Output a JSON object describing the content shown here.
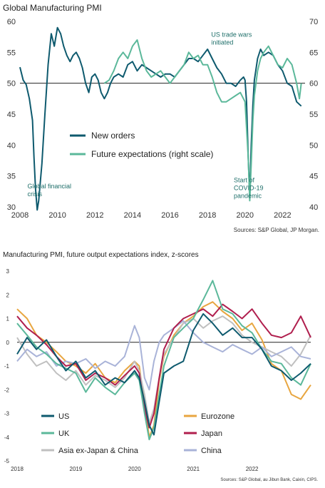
{
  "chart_data": [
    {
      "type": "line",
      "title": "Global Manufacturing PMI",
      "source": "Sources: S&P Global, JP Morgan.",
      "xlim": [
        2008,
        2023.2
      ],
      "x_ticks": [
        "2008",
        "2010",
        "2012",
        "2014",
        "2016",
        "2018",
        "2020",
        "2022"
      ],
      "ylim_left": [
        30,
        60
      ],
      "y_ticks_left": [
        "30",
        "35",
        "40",
        "45",
        "50",
        "55",
        "60"
      ],
      "ylim_right": [
        40,
        70
      ],
      "y_ticks_right": [
        "40",
        "45",
        "50",
        "55",
        "60",
        "65",
        "70"
      ],
      "reference_line": 50,
      "legend_placement": "center-left",
      "annotations": [
        {
          "text_lines": [
            "US trade wars",
            "initiated"
          ],
          "x": 2018.2,
          "y": 57.5,
          "color": "#1f6f6a"
        },
        {
          "text_lines": [
            "Global financial",
            "crisis"
          ],
          "x": 2008.4,
          "y": 33,
          "color": "#1f6f6a"
        },
        {
          "text_lines": [
            "Start of",
            "COVID-19",
            "pandemic"
          ],
          "x": 2019.4,
          "y": 34,
          "color": "#1f6f6a"
        }
      ],
      "series": [
        {
          "name": "New orders",
          "axis": "left",
          "color": "#0e5a6e",
          "x": [
            2008.0,
            2008.17,
            2008.33,
            2008.5,
            2008.67,
            2008.75,
            2008.83,
            2008.92,
            2009.0,
            2009.17,
            2009.33,
            2009.5,
            2009.67,
            2009.83,
            2010.0,
            2010.17,
            2010.33,
            2010.5,
            2010.67,
            2010.83,
            2011.0,
            2011.17,
            2011.33,
            2011.5,
            2011.67,
            2011.83,
            2012.0,
            2012.17,
            2012.33,
            2012.5,
            2012.67,
            2012.83,
            2013.0,
            2013.25,
            2013.5,
            2013.75,
            2014.0,
            2014.25,
            2014.5,
            2014.75,
            2015.0,
            2015.25,
            2015.5,
            2015.75,
            2016.0,
            2016.25,
            2016.5,
            2016.75,
            2017.0,
            2017.25,
            2017.5,
            2017.75,
            2018.0,
            2018.25,
            2018.5,
            2018.75,
            2019.0,
            2019.25,
            2019.5,
            2019.75,
            2019.92,
            2020.0,
            2020.08,
            2020.17,
            2020.25,
            2020.33,
            2020.42,
            2020.5,
            2020.67,
            2020.83,
            2021.0,
            2021.25,
            2021.5,
            2021.75,
            2022.0,
            2022.25,
            2022.5,
            2022.75,
            2023.0
          ],
          "y": [
            52.6,
            50.5,
            49.8,
            47.5,
            44,
            38,
            33,
            29.5,
            31,
            37,
            45,
            53,
            58,
            56,
            59,
            58,
            56,
            54.5,
            53.5,
            54.5,
            55,
            54,
            52.5,
            50,
            48.5,
            51,
            51.5,
            50.5,
            48.5,
            47.5,
            48.5,
            50,
            51,
            51.5,
            51,
            53,
            53.5,
            52,
            53,
            52.5,
            52,
            51.5,
            51,
            51.5,
            51.5,
            51,
            52,
            53,
            54,
            54,
            53.5,
            54.5,
            55.5,
            54,
            52.5,
            51.5,
            50,
            50,
            49.5,
            50.5,
            51,
            50.5,
            47,
            38,
            31.5,
            40,
            46.5,
            50.5,
            54,
            55.5,
            54.5,
            55,
            54.5,
            53,
            52,
            50,
            49.5,
            47,
            46.3
          ]
        },
        {
          "name": "Future expectations (right scale)",
          "axis": "right",
          "color": "#5bb89a",
          "x": [
            2012.5,
            2012.75,
            2013.0,
            2013.25,
            2013.5,
            2013.75,
            2014.0,
            2014.25,
            2014.5,
            2014.75,
            2015.0,
            2015.25,
            2015.5,
            2015.75,
            2016.0,
            2016.25,
            2016.5,
            2016.75,
            2017.0,
            2017.25,
            2017.5,
            2017.75,
            2018.0,
            2018.25,
            2018.5,
            2018.75,
            2019.0,
            2019.25,
            2019.5,
            2019.75,
            2020.0,
            2020.17,
            2020.25,
            2020.33,
            2020.42,
            2020.5,
            2020.67,
            2020.83,
            2021.0,
            2021.25,
            2021.5,
            2021.75,
            2022.0,
            2022.25,
            2022.5,
            2022.75,
            2022.9,
            2023.0
          ],
          "y": [
            60,
            60.5,
            62,
            64,
            65,
            64,
            66,
            67,
            64,
            62,
            61,
            61.5,
            62,
            61,
            60,
            61,
            62,
            63,
            65,
            64,
            64.5,
            63,
            63,
            61,
            58.5,
            57,
            57,
            57.5,
            58,
            58.5,
            57,
            48,
            41,
            47,
            54,
            58,
            62,
            64,
            65,
            66,
            64.5,
            63,
            62.5,
            64,
            63,
            60,
            57.5,
            60
          ]
        }
      ]
    },
    {
      "type": "line",
      "title": "Manufacturing PMI, future output expectations index, z-scores",
      "source": "Sources: S&P Global, au Jibun Bank, Caixin, CIPS.",
      "xlim": [
        2018,
        2023.0
      ],
      "x_ticks": [
        "2018",
        "2019",
        "2020",
        "2021",
        "2022"
      ],
      "ylim": [
        -5,
        3
      ],
      "y_ticks": [
        "3",
        "2",
        "1",
        "0",
        "-1",
        "-2",
        "-3",
        "-4",
        "-5"
      ],
      "reference_line": 0,
      "legend_placement": "bottom",
      "series": [
        {
          "name": "US",
          "color": "#0e5a6e",
          "x": [
            2018.0,
            2018.17,
            2018.33,
            2018.5,
            2018.67,
            2018.83,
            2019.0,
            2019.17,
            2019.33,
            2019.5,
            2019.67,
            2019.83,
            2020.0,
            2020.08,
            2020.17,
            2020.25,
            2020.33,
            2020.42,
            2020.5,
            2020.67,
            2020.83,
            2021.0,
            2021.17,
            2021.33,
            2021.5,
            2021.67,
            2021.83,
            2022.0,
            2022.17,
            2022.33,
            2022.5,
            2022.67,
            2022.83,
            2023.0
          ],
          "y": [
            -0.5,
            0.2,
            -0.3,
            0.1,
            -0.6,
            -1.2,
            -0.8,
            -1.5,
            -1.2,
            -1.8,
            -1.5,
            -1.7,
            -1.2,
            -1.5,
            -2.5,
            -3.5,
            -3.9,
            -2.5,
            -1.3,
            -1.0,
            -0.8,
            0.5,
            1.2,
            0.8,
            0.3,
            0.6,
            0.2,
            0.2,
            -0.3,
            -1.0,
            -1.2,
            -1.6,
            -1.3,
            -0.9
          ]
        },
        {
          "name": "UK",
          "color": "#5bb89a",
          "x": [
            2018.0,
            2018.17,
            2018.33,
            2018.5,
            2018.67,
            2018.83,
            2019.0,
            2019.17,
            2019.33,
            2019.5,
            2019.67,
            2019.83,
            2020.0,
            2020.08,
            2020.17,
            2020.25,
            2020.33,
            2020.42,
            2020.5,
            2020.67,
            2020.83,
            2021.0,
            2021.17,
            2021.33,
            2021.5,
            2021.67,
            2021.83,
            2022.0,
            2022.17,
            2022.33,
            2022.5,
            2022.67,
            2022.83,
            2023.0
          ],
          "y": [
            0.8,
            0.3,
            -0.2,
            -0.5,
            -0.9,
            -1.1,
            -1.3,
            -2.1,
            -1.5,
            -1.9,
            -2.2,
            -1.7,
            -1.3,
            -1.6,
            -3.0,
            -4.1,
            -3.6,
            -2.2,
            -1.0,
            0.2,
            0.6,
            1.0,
            1.8,
            2.6,
            1.4,
            1.2,
            0.7,
            0.4,
            -0.3,
            -0.8,
            -0.9,
            -1.5,
            -1.8,
            -0.9
          ]
        },
        {
          "name": "Asia ex-Japan & China",
          "color": "#c0c0c0",
          "x": [
            2018.0,
            2018.17,
            2018.33,
            2018.5,
            2018.67,
            2018.83,
            2019.0,
            2019.17,
            2019.33,
            2019.5,
            2019.67,
            2019.83,
            2020.0,
            2020.08,
            2020.17,
            2020.25,
            2020.33,
            2020.42,
            2020.5,
            2020.67,
            2020.83,
            2021.0,
            2021.17,
            2021.33,
            2021.5,
            2021.67,
            2021.83,
            2022.0,
            2022.17,
            2022.33,
            2022.5,
            2022.67,
            2022.83,
            2023.0
          ],
          "y": [
            0.2,
            -0.5,
            -1.0,
            -0.8,
            -1.3,
            -1.6,
            -1.2,
            -1.8,
            -1.4,
            -1.6,
            -1.9,
            -1.5,
            -0.8,
            -1.2,
            -2.2,
            -3.4,
            -2.8,
            -1.5,
            -0.5,
            0.2,
            0.8,
            1.0,
            0.6,
            0.9,
            1.1,
            0.8,
            0.3,
            0.0,
            -0.2,
            -0.4,
            -0.6,
            -1.0,
            -0.5,
            0.3
          ]
        },
        {
          "name": "Eurozone",
          "color": "#e8a640",
          "x": [
            2018.0,
            2018.17,
            2018.33,
            2018.5,
            2018.67,
            2018.83,
            2019.0,
            2019.17,
            2019.33,
            2019.5,
            2019.67,
            2019.83,
            2020.0,
            2020.08,
            2020.17,
            2020.25,
            2020.33,
            2020.42,
            2020.5,
            2020.67,
            2020.83,
            2021.0,
            2021.17,
            2021.33,
            2021.5,
            2021.67,
            2021.83,
            2022.0,
            2022.17,
            2022.33,
            2022.5,
            2022.67,
            2022.83,
            2023.0
          ],
          "y": [
            1.4,
            1.0,
            0.3,
            0.0,
            -0.4,
            -0.8,
            -1.0,
            -1.3,
            -0.9,
            -1.5,
            -1.7,
            -1.2,
            -0.8,
            -1.0,
            -2.6,
            -4.0,
            -3.5,
            -1.6,
            -0.6,
            0.3,
            0.8,
            1.1,
            1.5,
            1.7,
            1.3,
            1.0,
            0.5,
            0.8,
            0.1,
            -0.9,
            -1.2,
            -2.2,
            -2.4,
            -1.8
          ]
        },
        {
          "name": "Japan",
          "color": "#b01f4e",
          "x": [
            2018.0,
            2018.17,
            2018.33,
            2018.5,
            2018.67,
            2018.83,
            2019.0,
            2019.17,
            2019.33,
            2019.5,
            2019.67,
            2019.83,
            2020.0,
            2020.08,
            2020.17,
            2020.25,
            2020.33,
            2020.42,
            2020.5,
            2020.67,
            2020.83,
            2021.0,
            2021.17,
            2021.33,
            2021.5,
            2021.67,
            2021.83,
            2022.0,
            2022.17,
            2022.33,
            2022.5,
            2022.67,
            2022.83,
            2023.0
          ],
          "y": [
            1.1,
            0.6,
            0.3,
            -0.1,
            -0.6,
            -1.0,
            -0.9,
            -1.6,
            -1.3,
            -1.5,
            -1.8,
            -1.4,
            -1.0,
            -1.3,
            -2.8,
            -3.6,
            -3.0,
            -1.5,
            -0.3,
            0.6,
            1.0,
            1.2,
            1.4,
            1.1,
            1.6,
            1.3,
            1.0,
            1.4,
            0.8,
            0.3,
            0.2,
            0.4,
            1.1,
            0.2
          ]
        },
        {
          "name": "China",
          "color": "#a9b3d8",
          "x": [
            2018.0,
            2018.17,
            2018.33,
            2018.5,
            2018.67,
            2018.83,
            2019.0,
            2019.17,
            2019.33,
            2019.5,
            2019.67,
            2019.83,
            2020.0,
            2020.08,
            2020.17,
            2020.25,
            2020.33,
            2020.42,
            2020.5,
            2020.67,
            2020.83,
            2021.0,
            2021.17,
            2021.33,
            2021.5,
            2021.67,
            2021.83,
            2022.0,
            2022.17,
            2022.33,
            2022.5,
            2022.67,
            2022.83,
            2023.0
          ],
          "y": [
            -0.8,
            -0.3,
            -0.6,
            -0.4,
            -1.0,
            -0.8,
            -0.9,
            -0.7,
            -1.1,
            -0.8,
            -1.0,
            -0.6,
            0.7,
            0.2,
            -1.5,
            -2.0,
            -0.8,
            0.0,
            0.3,
            0.6,
            0.9,
            0.4,
            0.0,
            -0.2,
            -0.4,
            -0.1,
            -0.3,
            -0.5,
            -0.2,
            -0.6,
            -0.4,
            -0.2,
            -0.6,
            -0.7
          ]
        }
      ]
    }
  ]
}
